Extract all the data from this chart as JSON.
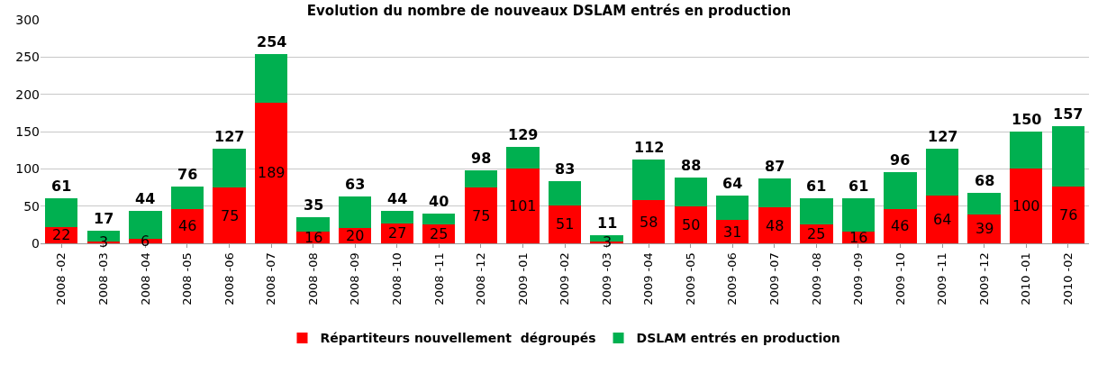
{
  "chart_data": {
    "type": "bar",
    "stacked": true,
    "title": "Evolution du nombre de nouveaux DSLAM entrés en production",
    "categories": [
      "2008 -02",
      "2008 -03",
      "2008 -04",
      "2008 -05",
      "2008 -06",
      "2008 -07",
      "2008 -08",
      "2008 -09",
      "2008 -10",
      "2008 -11",
      "2008 -12",
      "2009 -01",
      "2009 -02",
      "2009 -03",
      "2009 -04",
      "2009 -05",
      "2009 -06",
      "2009 -07",
      "2009 -08",
      "2009 -09",
      "2009 -10",
      "2009 -11",
      "2009 -12",
      "2010 -01",
      "2010 -02"
    ],
    "series": [
      {
        "name": "Répartiteurs nouvellement  dégroupés",
        "color": "#ff0000",
        "values": [
          22,
          3,
          6,
          46,
          75,
          189,
          16,
          20,
          27,
          25,
          75,
          101,
          51,
          3,
          58,
          50,
          31,
          48,
          25,
          16,
          46,
          64,
          39,
          100,
          76
        ],
        "value_labels": [
          "22",
          "3",
          "6",
          "46",
          "75",
          "189",
          "16",
          "20",
          "27",
          "25",
          "75",
          "101",
          "51",
          "3",
          "58",
          "50",
          "31",
          "48",
          "25",
          "16",
          "46",
          "64",
          "39",
          "100",
          "76"
        ]
      },
      {
        "name": "DSLAM entrés en production",
        "color": "#00b050",
        "values": [
          39,
          14,
          38,
          30,
          52,
          65,
          19,
          43,
          17,
          15,
          23,
          28,
          32,
          8,
          54,
          38,
          33,
          39,
          36,
          45,
          50,
          63,
          29,
          50,
          81
        ]
      }
    ],
    "totals": [
      "61",
      "17",
      "44",
      "76",
      "127",
      "254",
      "35",
      "63",
      "44",
      "40",
      "98",
      "129",
      "83",
      "11",
      "112",
      "88",
      "64",
      "87",
      "61",
      "61",
      "96",
      "127",
      "68",
      "150",
      "157"
    ],
    "ylim": [
      0,
      300
    ],
    "yticks": [
      0,
      50,
      100,
      150,
      200,
      250,
      300
    ],
    "grid": "y",
    "legend": "bottom"
  }
}
